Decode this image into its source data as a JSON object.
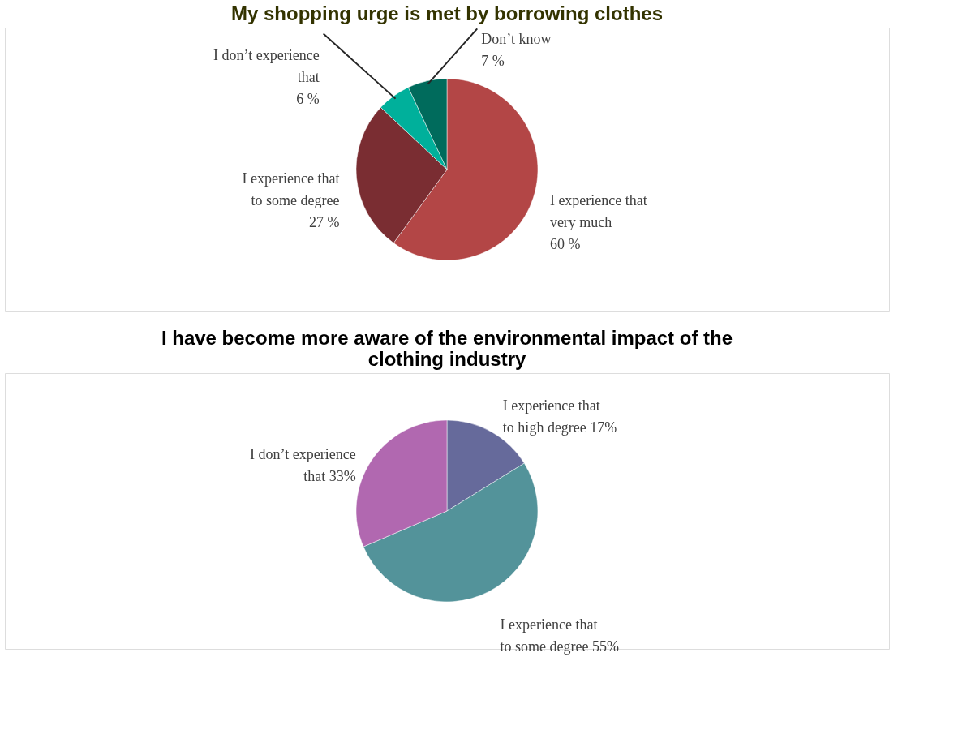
{
  "chart_data": [
    {
      "type": "pie",
      "title": "My shopping urge is met by borrowing clothes",
      "categories": [
        "I experience that very much",
        "I experience that to some degree",
        "I don’t experience that",
        "Don’t know"
      ],
      "values": [
        60,
        27,
        6,
        7
      ],
      "value_labels": [
        "60 %",
        "27 %",
        "6 %",
        "7 %"
      ],
      "colors": [
        "#b34646",
        "#7a2d32",
        "#00b09b",
        "#006b5c"
      ],
      "legend": false
    },
    {
      "type": "pie",
      "title": "I have become more aware of the environmental impact of the clothing industry",
      "categories": [
        "I experience that to high degree",
        "I experience that to some degree",
        "I don’t experience that"
      ],
      "values": [
        17,
        55,
        33
      ],
      "value_labels": [
        "17%",
        "55%",
        "33%"
      ],
      "colors": [
        "#666a9b",
        "#53939a",
        "#b168b0"
      ],
      "legend": false
    }
  ]
}
